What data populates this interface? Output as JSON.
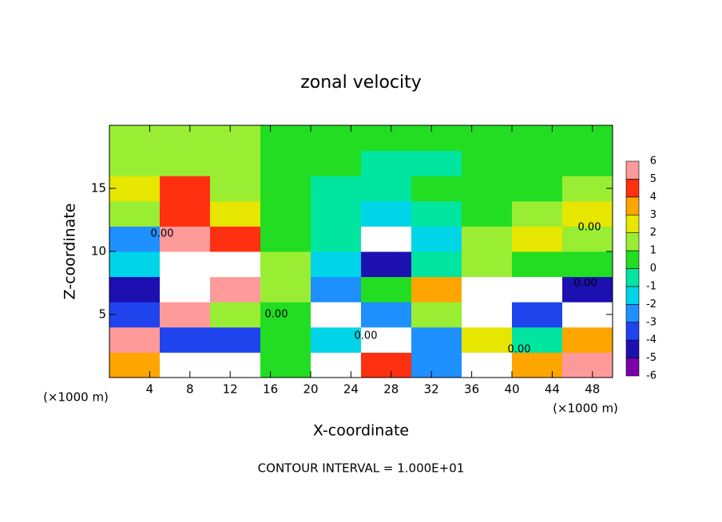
{
  "chart_data": {
    "type": "heatmap",
    "title": "zonal velocity",
    "x_label": "X-coordinate",
    "y_label": "Z-coordinate",
    "x_unit": "(×1000 m)",
    "y_unit": "(×1000 m)",
    "footer": "CONTOUR INTERVAL = 1.000E+01",
    "contour_labels": [
      "0.00",
      "0.00",
      "0.00",
      "0.00",
      "0.00",
      "0.00"
    ],
    "x_bins": [
      0,
      5,
      10,
      15,
      20,
      25,
      30,
      35,
      40,
      45,
      50
    ],
    "z_bins": [
      0,
      2,
      4,
      6,
      8,
      10,
      12,
      14,
      16,
      18,
      20
    ],
    "values": [
      [
        3,
        -7,
        -7,
        0,
        -7,
        4,
        -3,
        -7,
        3,
        5
      ],
      [
        5,
        -4,
        -4,
        0,
        -2,
        7,
        -3,
        2,
        -1,
        3
      ],
      [
        -4,
        5,
        1,
        0,
        -7,
        -3,
        1,
        7,
        -4,
        -7
      ],
      [
        -5,
        7,
        6,
        1,
        -3,
        0,
        3,
        7,
        -7,
        -5
      ],
      [
        -2,
        7,
        7,
        1,
        -2,
        -5,
        -1,
        1,
        0,
        0
      ],
      [
        -3,
        5,
        4,
        0,
        -1,
        -7,
        -2,
        1,
        2,
        1
      ],
      [
        1,
        4,
        2,
        0,
        -1,
        -2,
        -1,
        0,
        1,
        2
      ],
      [
        2,
        4,
        1,
        0,
        -1,
        -1,
        0,
        0,
        0,
        1
      ],
      [
        1,
        1,
        1,
        0,
        0,
        -1,
        -1,
        0,
        0,
        0
      ],
      [
        1,
        1,
        1,
        0,
        0,
        0,
        0,
        0,
        0,
        0
      ]
    ],
    "xlim": [
      0,
      50
    ],
    "ylim": [
      0,
      20
    ],
    "xticks": [
      4,
      8,
      12,
      16,
      20,
      24,
      28,
      32,
      36,
      40,
      44,
      48
    ],
    "yticks": [
      5,
      10,
      15
    ],
    "clim": [
      -6,
      6
    ],
    "cticks": [
      -6,
      -5,
      -4,
      -3,
      -2,
      -1,
      0,
      1,
      2,
      3,
      4,
      5,
      6
    ],
    "colors": [
      "#7a00a8",
      "#1c10b0",
      "#1f44ee",
      "#1e90ff",
      "#00d4e8",
      "#00e6a0",
      "#22dd22",
      "#99ee33",
      "#e6e600",
      "#ffa500",
      "#ff3010",
      "#ff9a9a"
    ],
    "out_of_range_color": "#ffffff"
  }
}
